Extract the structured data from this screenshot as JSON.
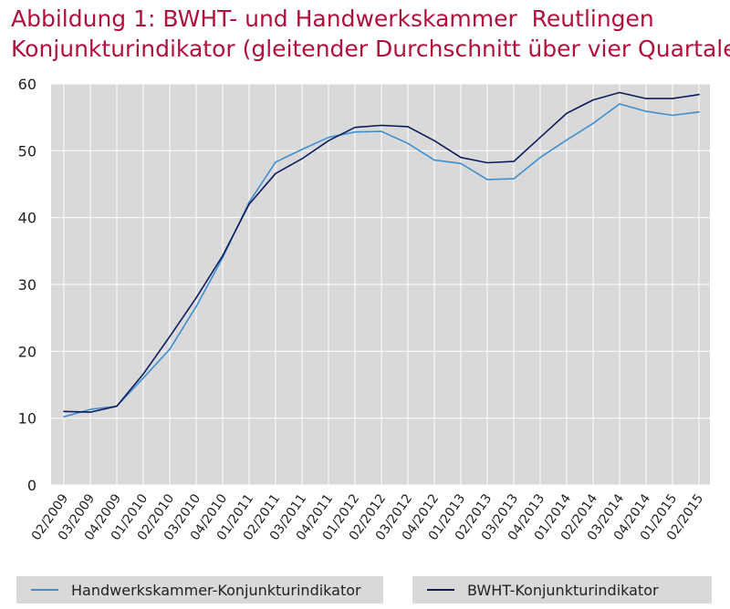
{
  "title": {
    "line1": "Abbildung 1: BWHT- und Handwerkskammer  Reutlingen",
    "line2": "Konjunkturindikator (gleitender Durchschnitt über vier Quartale)"
  },
  "chart_data": {
    "type": "line",
    "categories": [
      "02/2009",
      "03/2009",
      "04/2009",
      "01/2010",
      "02/2010",
      "03/2010",
      "04/2010",
      "01/2011",
      "02/2011",
      "03/2011",
      "04/2011",
      "01/2012",
      "02/2012",
      "03/2012",
      "04/2012",
      "01/2013",
      "02/2013",
      "03/2013",
      "04/2013",
      "01/2014",
      "02/2014",
      "03/2014",
      "04/2014",
      "01/2015",
      "02/2015"
    ],
    "series": [
      {
        "name": "Handwerkskammer-Konjunkturindikator",
        "color": "#3f8fd0",
        "values": [
          10.2,
          11.3,
          11.8,
          16.0,
          20.3,
          26.7,
          34.0,
          42.3,
          48.3,
          50.2,
          52.0,
          52.8,
          52.9,
          51.1,
          48.6,
          48.1,
          45.7,
          45.8,
          49.0,
          51.6,
          54.1,
          57.0,
          55.9,
          55.3,
          55.8
        ]
      },
      {
        "name": "BWHT-Konjunkturindikator",
        "color": "#0d1b5e",
        "values": [
          11.0,
          10.9,
          11.8,
          16.6,
          22.2,
          28.0,
          34.3,
          42.0,
          46.6,
          48.8,
          51.5,
          53.5,
          53.8,
          53.6,
          51.5,
          49.0,
          48.2,
          48.4,
          52.0,
          55.6,
          57.6,
          58.7,
          57.8,
          57.8,
          58.4
        ]
      }
    ],
    "xlabel": "",
    "ylabel": "",
    "ylim": [
      0,
      60
    ],
    "yticks": [
      0,
      10,
      20,
      30,
      40,
      50,
      60
    ],
    "grid": true,
    "legend": "bottom"
  }
}
